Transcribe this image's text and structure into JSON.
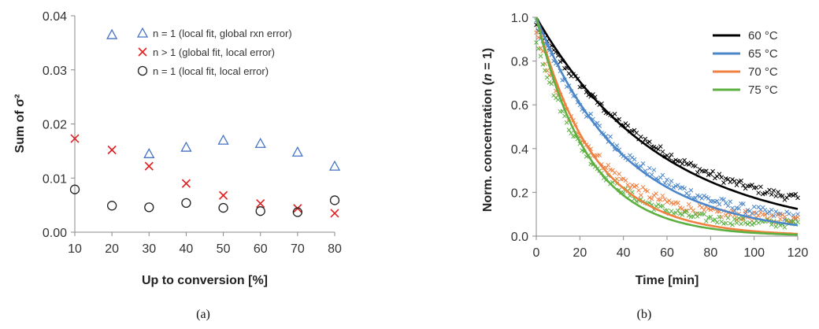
{
  "chart_data": [
    {
      "type": "scatter",
      "panel_label": "(a)",
      "xlabel": "Up to conversion [%]",
      "ylabel": "Sum of σ²",
      "xticks": [
        "10",
        "20",
        "30",
        "40",
        "50",
        "60",
        "70",
        "80"
      ],
      "yticks": [
        "0.00",
        "0.01",
        "0.02",
        "0.03",
        "0.04"
      ],
      "xlim": [
        10,
        80
      ],
      "ylim": [
        0,
        0.04
      ],
      "grid": false,
      "legend_position": "top-right",
      "x": [
        10,
        20,
        30,
        40,
        50,
        60,
        70,
        80
      ],
      "series": [
        {
          "name": "n = 1 (local fit, global rxn error)",
          "marker": "triangle",
          "color": "#4472C4",
          "values": [
            null,
            0.0365,
            0.0145,
            0.0157,
            0.017,
            0.0164,
            0.0148,
            0.0122
          ]
        },
        {
          "name": "n > 1 (global fit, local error)",
          "marker": "x",
          "color": "#E02020",
          "values": [
            0.0173,
            0.0152,
            0.0122,
            0.009,
            0.0068,
            0.0053,
            0.0044,
            0.0035
          ]
        },
        {
          "name": "n = 1 (local fit, local error)",
          "marker": "circle",
          "color": "#222222",
          "values": [
            0.0079,
            0.0049,
            0.0046,
            0.0054,
            0.0045,
            0.0039,
            0.0037,
            0.0059
          ]
        }
      ]
    },
    {
      "type": "scatter+line",
      "panel_label": "(b)",
      "xlabel": "Time [min]",
      "ylabel_main": "Norm. concentration (",
      "ylabel_italic": "n",
      "ylabel_tail": " = 1)",
      "xticks": [
        "0",
        "20",
        "40",
        "60",
        "80",
        "100",
        "120"
      ],
      "yticks": [
        "0.0",
        "0.2",
        "0.4",
        "0.6",
        "0.8",
        "1.0"
      ],
      "xlim": [
        0,
        120
      ],
      "ylim": [
        0,
        1.0
      ],
      "grid": false,
      "legend_position": "top-right",
      "series": [
        {
          "name": "60 °C",
          "color": "#000000",
          "fit_k": 0.0174,
          "noise": 0.018
        },
        {
          "name": "65 °C",
          "color": "#4A86C8",
          "fit_k": 0.025,
          "noise": 0.022
        },
        {
          "name": "70 °C",
          "color": "#F08040",
          "fit_k": 0.038,
          "noise": 0.022
        },
        {
          "name": "75 °C",
          "color": "#5BB040",
          "fit_k": 0.042,
          "noise": 0.018
        }
      ]
    }
  ]
}
